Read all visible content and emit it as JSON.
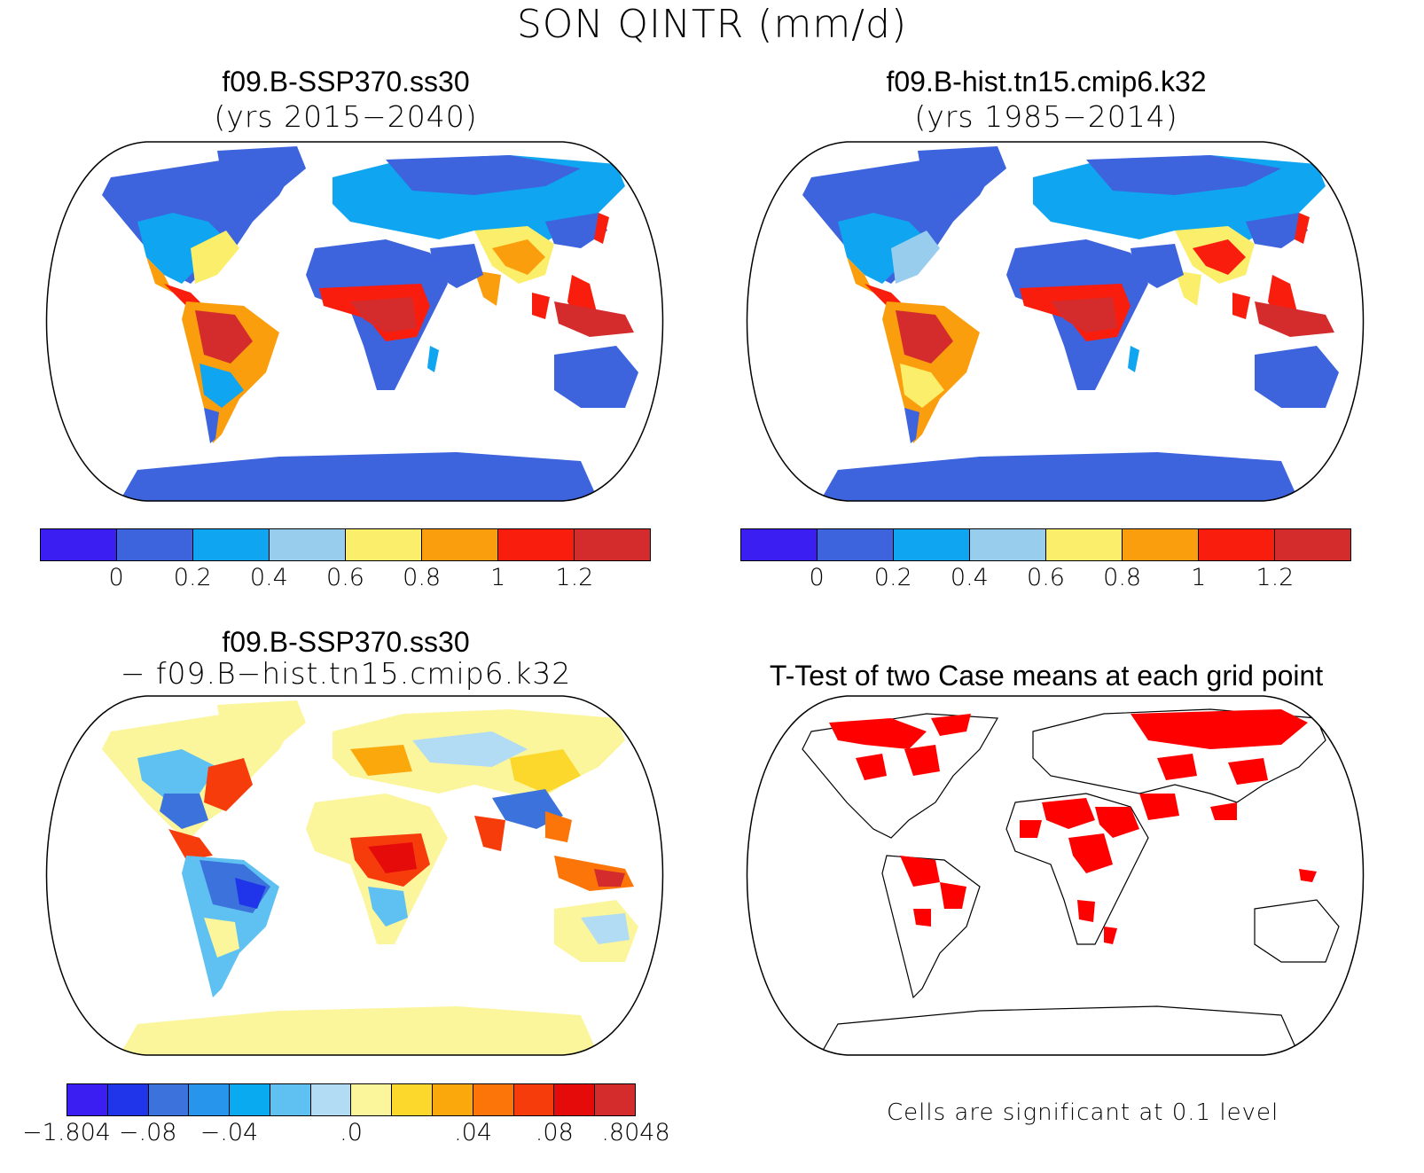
{
  "title": "SON QINTR (mm/d)",
  "panels": [
    {
      "id": "p1",
      "title_line1": "f09.B-SSP370.ss30",
      "title_line2": "(yrs 2015−2040)"
    },
    {
      "id": "p2",
      "title_line1": "f09.B-hist.tn15.cmip6.k32",
      "title_line2": "(yrs 1985−2014)"
    },
    {
      "id": "p3",
      "title_line1": "f09.B-SSP370.ss30",
      "title_line2": "− f09.B−hist.tn15.cmip6.k32"
    },
    {
      "id": "p4",
      "title_line1": "T-Test of two Case means at each grid point",
      "note": "Cells are significant at 0.1 level"
    }
  ],
  "colorbar_abs": {
    "colors": [
      "#3b1ff2",
      "#3d63dd",
      "#0fa5f0",
      "#98cdee",
      "#fbee6a",
      "#fb9e0d",
      "#f91d0d",
      "#d42c2c"
    ],
    "labels": [
      "0",
      "0.2",
      "0.4",
      "0.6",
      "0.8",
      "1",
      "1.2"
    ]
  },
  "colorbar_diff": {
    "colors": [
      "#3b1ff2",
      "#2035ea",
      "#3b72db",
      "#2795eb",
      "#0aaaf0",
      "#5ec1f2",
      "#b2dcf3",
      "#fbf59c",
      "#fcd72c",
      "#fba80c",
      "#fb7508",
      "#f73c0c",
      "#e50b0b",
      "#d42c2c"
    ],
    "labels": [
      "−1.804",
      "−.08",
      "−.04",
      ".0",
      ".04",
      ".08",
      ".8048"
    ]
  },
  "significance_color": "#ff0000"
}
